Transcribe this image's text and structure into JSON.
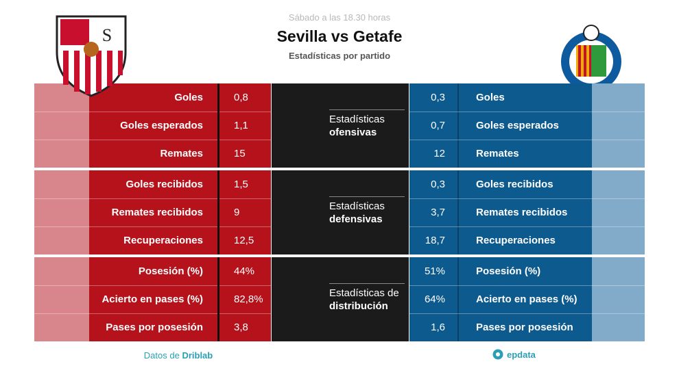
{
  "header": {
    "kicker": "Sábado a las 18.30 horas",
    "title": "Sevilla vs Getafe",
    "subtitle": "Estadísticas por partido"
  },
  "sections": [
    {
      "label": [
        "Estadísticas",
        "ofensivas"
      ],
      "rows": [
        {
          "home_label": "Goles",
          "home_value": "0,8",
          "away_value": "0,3",
          "away_label": "Goles"
        },
        {
          "home_label": "Goles esperados",
          "home_value": "1,1",
          "away_value": "0,7",
          "away_label": "Goles esperados"
        },
        {
          "home_label": "Remates",
          "home_value": "15",
          "away_value": "12",
          "away_label": "Remates"
        }
      ]
    },
    {
      "label": [
        "Estadísticas",
        "defensivas"
      ],
      "rows": [
        {
          "home_label": "Goles recibidos",
          "home_value": "1,5",
          "away_value": "0,3",
          "away_label": "Goles recibidos"
        },
        {
          "home_label": "Remates recibidos",
          "home_value": "9",
          "away_value": "3,7",
          "away_label": "Remates recibidos"
        },
        {
          "home_label": "Recuperaciones",
          "home_value": "12,5",
          "away_value": "18,7",
          "away_label": "Recuperaciones"
        }
      ]
    },
    {
      "label": [
        "Estadísticas de",
        "distribución"
      ],
      "rows": [
        {
          "home_label": "Posesión (%)",
          "home_value": "44%",
          "away_value": "51%",
          "away_label": "Posesión (%)"
        },
        {
          "home_label": "Acierto en pases (%)",
          "home_value": "82,8%",
          "away_value": "64%",
          "away_label": "Acierto en pases (%)"
        },
        {
          "home_label": "Pases por posesión",
          "home_value": "3,8",
          "away_value": "1,6",
          "away_label": "Pases por posesión"
        }
      ]
    }
  ],
  "footer": {
    "source_prefix": "Datos de",
    "source": "Driblab",
    "brand": "epdata"
  }
}
